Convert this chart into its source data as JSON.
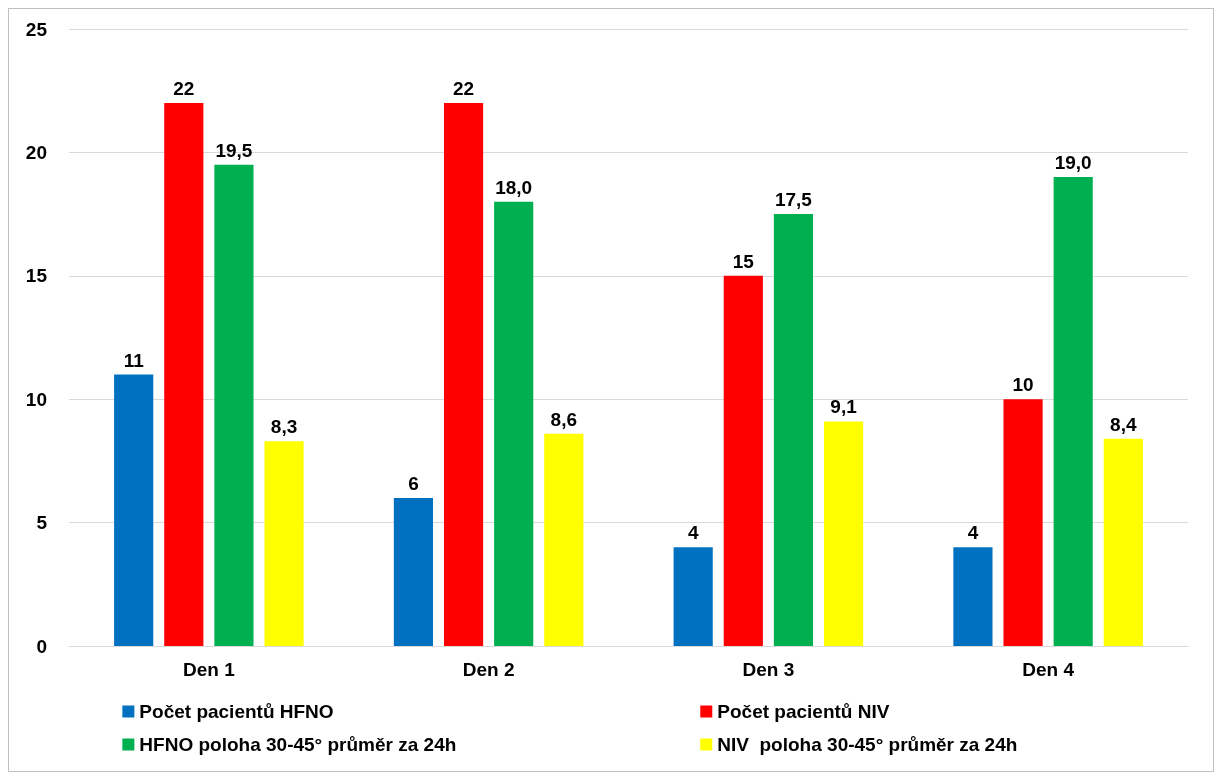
{
  "chart_data": {
    "type": "bar",
    "categories": [
      "Den 1",
      "Den 2",
      "Den 3",
      "Den 4"
    ],
    "series": [
      {
        "name": "Počet pacientů HFNO",
        "color": "#0070c0",
        "values": [
          11,
          6,
          4,
          4
        ],
        "value_labels": [
          "11",
          "6",
          "4",
          "4"
        ]
      },
      {
        "name": "Počet pacientů NIV",
        "color": "#ff0000",
        "values": [
          22,
          22,
          15,
          10
        ],
        "value_labels": [
          "22",
          "22",
          "15",
          "10"
        ]
      },
      {
        "name": "HFNO poloha 30-45° průměr za 24h",
        "color": "#00b050",
        "values": [
          19.5,
          18.0,
          17.5,
          19.0
        ],
        "value_labels": [
          "19,5",
          "18,0",
          "17,5",
          "19,0"
        ]
      },
      {
        "name": "NIV  poloha 30-45° průměr za 24h",
        "color": "#ffff00",
        "values": [
          8.3,
          8.6,
          9.1,
          8.4
        ],
        "value_labels": [
          "8,3",
          "8,6",
          "9,1",
          "8,4"
        ]
      }
    ],
    "ylim": [
      0,
      25
    ],
    "yticks": [
      0,
      5,
      10,
      15,
      20,
      25
    ],
    "grid": "y",
    "legend": "bottom"
  }
}
